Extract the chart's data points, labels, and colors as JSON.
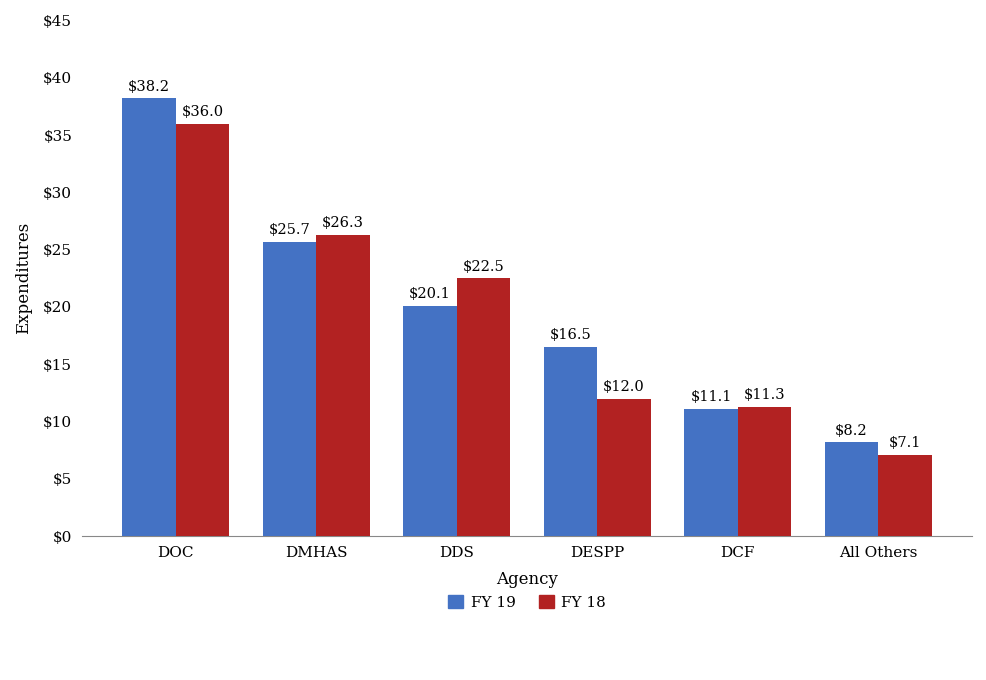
{
  "categories": [
    "DOC",
    "DMHAS",
    "DDS",
    "DESPP",
    "DCF",
    "All Others"
  ],
  "fy19_values": [
    38.2,
    25.7,
    20.1,
    16.5,
    11.1,
    8.2
  ],
  "fy18_values": [
    36.0,
    26.3,
    22.5,
    12.0,
    11.3,
    7.1
  ],
  "fy19_color": "#4472C4",
  "fy18_color": "#B22222",
  "ylabel": "Expenditures",
  "xlabel": "Agency",
  "ylim": [
    0,
    45
  ],
  "yticks": [
    0,
    5,
    10,
    15,
    20,
    25,
    30,
    35,
    40,
    45
  ],
  "ytick_labels": [
    "$0",
    "$5",
    "$10",
    "$15",
    "$20",
    "$25",
    "$30",
    "$35",
    "$40",
    "$45"
  ],
  "legend_labels": [
    "FY 19",
    "FY 18"
  ],
  "bar_width": 0.38,
  "label_fontsize": 10.5,
  "axis_label_fontsize": 12,
  "tick_fontsize": 11,
  "legend_fontsize": 11,
  "background_color": "#ffffff"
}
